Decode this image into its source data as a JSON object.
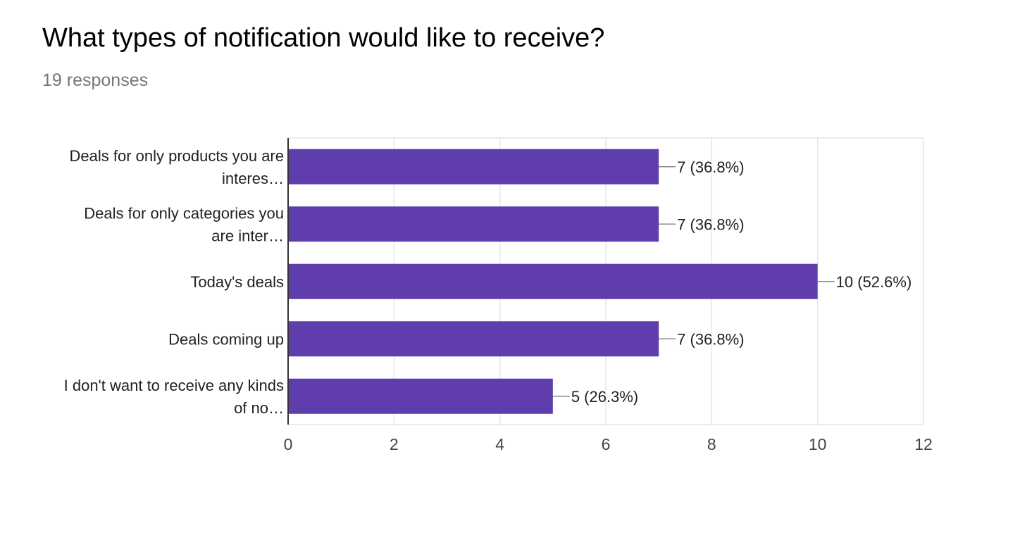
{
  "question": {
    "title": "What types of notification would like to receive?",
    "responses": "19 responses"
  },
  "colors": {
    "bar": "#5f3dac",
    "grid": "#e6e6e6",
    "axis": "#333333",
    "leader": "#8a8a8a"
  },
  "chart_data": {
    "type": "bar",
    "orientation": "horizontal",
    "categories": [
      [
        "Deals for only products you are",
        "interes…"
      ],
      [
        "Deals for only categories you",
        "are inter…"
      ],
      [
        "Today's deals"
      ],
      [
        "Deals coming up"
      ],
      [
        "I don't want to receive any kinds",
        "of no…"
      ]
    ],
    "values": [
      7,
      7,
      10,
      7,
      5
    ],
    "data_labels": [
      "7 (36.8%)",
      "7 (36.8%)",
      "10 (52.6%)",
      "7 (36.8%)",
      "5 (26.3%)"
    ],
    "xlim": [
      0,
      12
    ],
    "x_ticks": [
      0,
      2,
      4,
      6,
      8,
      10,
      12
    ],
    "grid": true,
    "legend": "none"
  }
}
